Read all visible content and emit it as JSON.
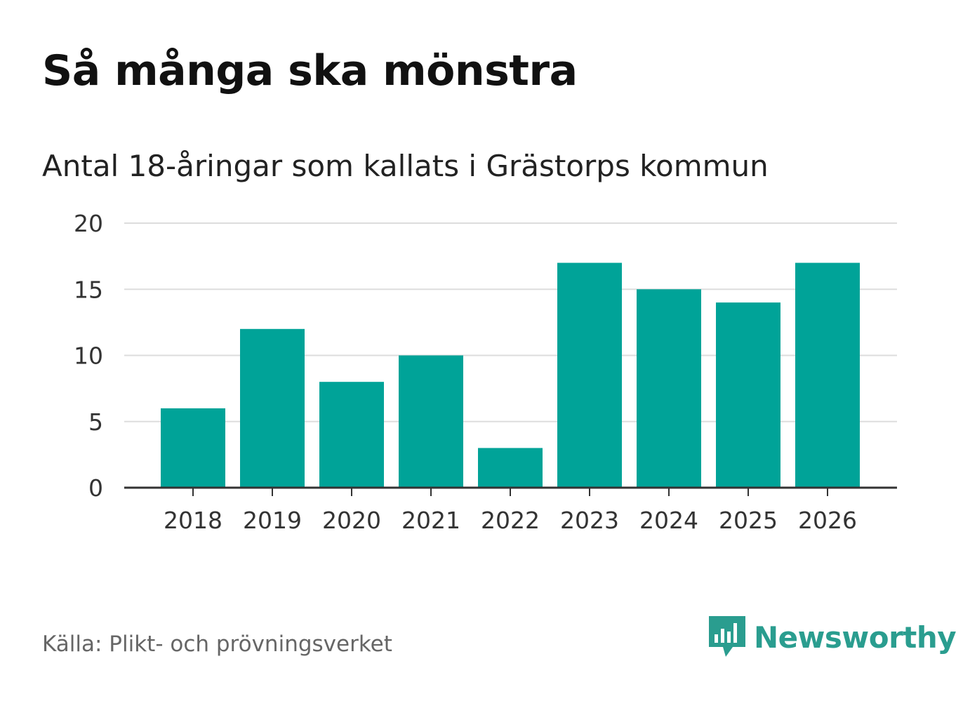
{
  "header": {
    "title": "Så många ska mönstra",
    "subtitle": "Antal 18-åringar som kallats i Grästorps kommun"
  },
  "footer": {
    "source": "Källa: Plikt- och prövningsverket",
    "brand": "Newsworthy",
    "brand_icon": "newsworthy-logo-icon"
  },
  "colors": {
    "bar": "#00a398",
    "grid": "#dddddd",
    "axis": "#333333",
    "brand": "#2a9d8f"
  },
  "chart_data": {
    "type": "bar",
    "title": "Så många ska mönstra",
    "subtitle": "Antal 18-åringar som kallats i Grästorps kommun",
    "xlabel": "",
    "ylabel": "",
    "categories": [
      "2018",
      "2019",
      "2020",
      "2021",
      "2022",
      "2023",
      "2024",
      "2025",
      "2026"
    ],
    "values": [
      6,
      12,
      8,
      10,
      3,
      17,
      15,
      14,
      17
    ],
    "ylim": [
      0,
      20
    ],
    "yticks": [
      0,
      5,
      10,
      15,
      20
    ],
    "grid": true,
    "legend": "none"
  }
}
